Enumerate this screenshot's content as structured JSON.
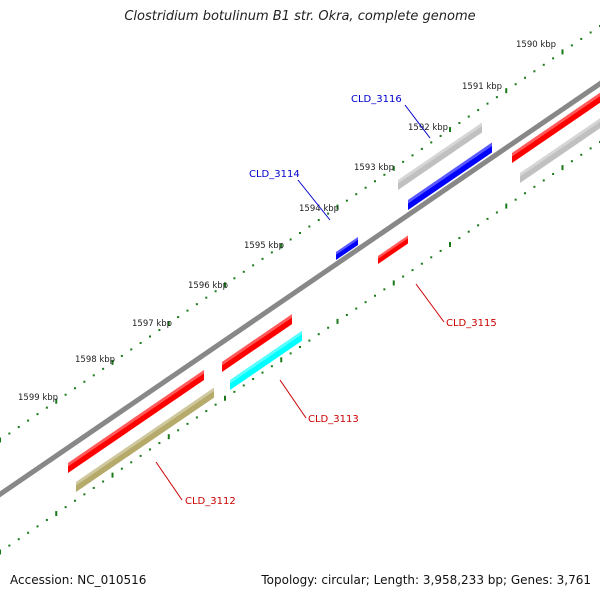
{
  "title": "Clostridium botulinum B1 str. Okra, complete genome",
  "footer": {
    "accession": "Accession: NC_010516",
    "summary": "Topology: circular; Length: 3,958,233 bp; Genes: 3,761"
  },
  "ticks": [
    {
      "label": "1590 kbp",
      "kbp": 1590
    },
    {
      "label": "1591 kbp",
      "kbp": 1591
    },
    {
      "label": "1592 kbp",
      "kbp": 1592
    },
    {
      "label": "1593 kbp",
      "kbp": 1593
    },
    {
      "label": "1594 kbp",
      "kbp": 1594
    },
    {
      "label": "1595 kbp",
      "kbp": 1595
    },
    {
      "label": "1596 kbp",
      "kbp": 1596
    },
    {
      "label": "1597 kbp",
      "kbp": 1597
    },
    {
      "label": "1598 kbp",
      "kbp": 1598
    },
    {
      "label": "1599 kbp",
      "kbp": 1599
    }
  ],
  "genes": [
    {
      "name": "CLD_3116",
      "strand": "+",
      "color": "#0000cc"
    },
    {
      "name": "CLD_3114",
      "strand": "+",
      "color": "#0000cc"
    },
    {
      "name": "CLD_3115",
      "strand": "-",
      "color": "#cc0000"
    },
    {
      "name": "CLD_3113",
      "strand": "-",
      "color": "#cc0000"
    },
    {
      "name": "CLD_3112",
      "strand": "-",
      "color": "#cc0000"
    }
  ],
  "colors": {
    "cds": "#ff0000",
    "gene_plus": "#0000ff",
    "rRNA_like": "#00ffff",
    "misc_feature": "#b5aa6a",
    "other": "#c0c0c0",
    "backbone": "#808080",
    "ticks": "#1a7a1a"
  }
}
